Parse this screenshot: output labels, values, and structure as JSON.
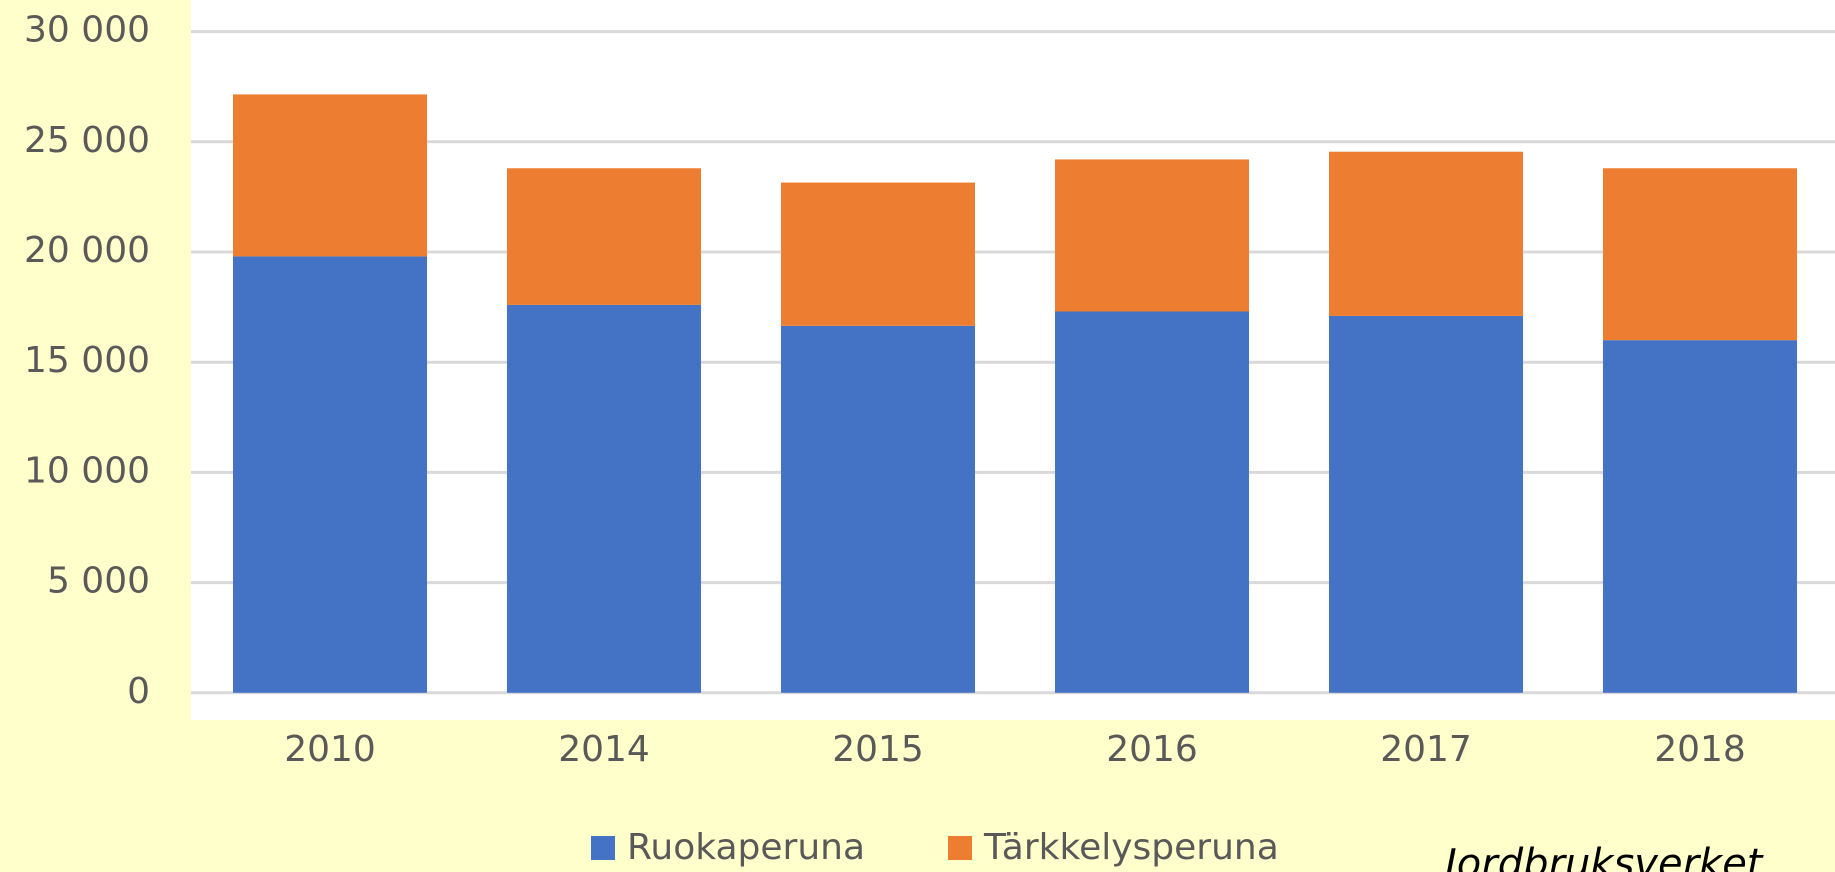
{
  "chart_data": {
    "type": "stacked_bar",
    "categories": [
      "2010",
      "2014",
      "2015",
      "2016",
      "2017",
      "2018"
    ],
    "series": [
      {
        "name": "Ruokaperuna",
        "color": "#4472c4",
        "values": [
          19800,
          17600,
          16650,
          17300,
          17100,
          16000
        ]
      },
      {
        "name": "Tärkkelysperuna",
        "color": "#ed7d31",
        "values": [
          7350,
          6200,
          6500,
          6900,
          7450,
          7800
        ]
      }
    ],
    "ylim": [
      0,
      30000
    ],
    "yticks": [
      0,
      {
        "value": 5000,
        "label": "5 000"
      },
      {
        "value": 10000,
        "label": "10 000"
      },
      {
        "value": 15000,
        "label": "15 000"
      },
      {
        "value": 20000,
        "label": "20 000"
      },
      {
        "value": 25000,
        "label": "25 000"
      },
      {
        "value": 30000,
        "label": "30 000"
      }
    ],
    "grid": true,
    "legend": "bottom",
    "source": "Jordbruksverket"
  }
}
